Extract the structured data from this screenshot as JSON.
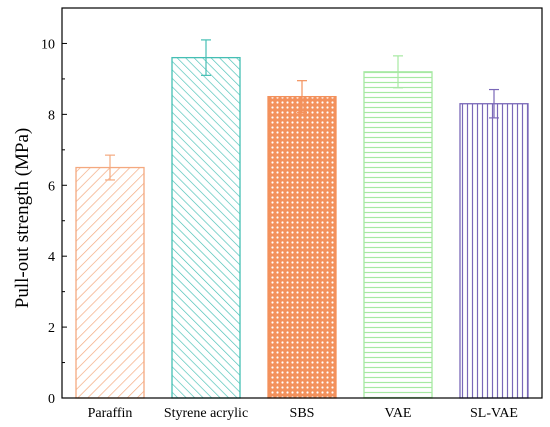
{
  "chart_data": {
    "type": "bar",
    "categories": [
      "Paraffin",
      "Styrene acrylic",
      "SBS",
      "VAE",
      "SL-VAE"
    ],
    "values": [
      6.5,
      9.6,
      8.5,
      9.2,
      8.3
    ],
    "errors": [
      0.35,
      0.5,
      0.45,
      0.45,
      0.4
    ],
    "ylabel": "Pull-out strength (MPa)",
    "xlabel": "",
    "ylim": [
      0,
      11
    ],
    "yticks": [
      0,
      2,
      4,
      6,
      8,
      10
    ],
    "grid": false,
    "colors": [
      "#f4a97f",
      "#45bfb4",
      "#f3915c",
      "#a6e9a2",
      "#7a68b8"
    ],
    "patterns": [
      "diag-right",
      "diag-left",
      "dots",
      "horizontal",
      "vertical"
    ]
  }
}
